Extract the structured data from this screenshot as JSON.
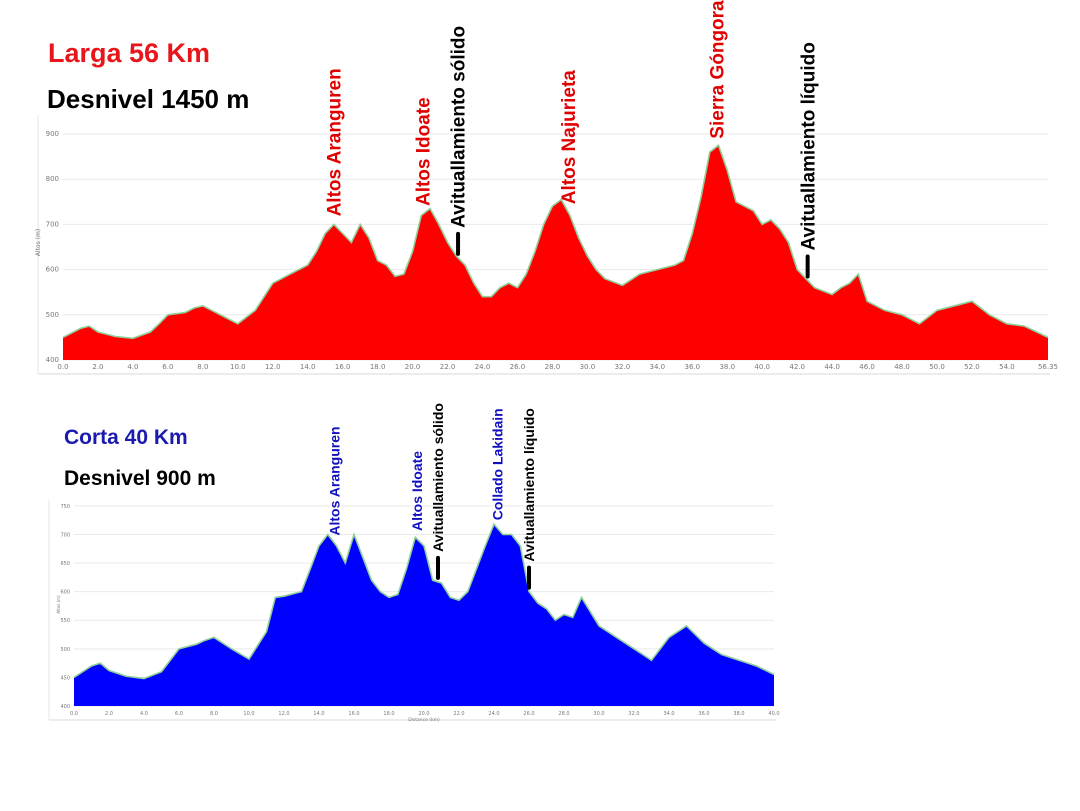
{
  "colors": {
    "long_fill": "#ff0000",
    "short_fill": "#0000ff",
    "profile_line": "#8fcf9a",
    "poi_long": "#e00000",
    "poi_short": "#1010c0",
    "supply": "#000000"
  },
  "long": {
    "title": "Larga 56 Km",
    "subtitle": "Desnivel 1450 m"
  },
  "short": {
    "title": "Corta 40 Km",
    "subtitle": "Desnivel 900 m"
  },
  "chart_data": [
    {
      "type": "area",
      "xlim": [
        0,
        56.35
      ],
      "ylim": [
        400,
        920
      ],
      "ylabel": "Altos (m)",
      "yticks": [
        400,
        500,
        600,
        700,
        800,
        900
      ],
      "xticks": [
        "0.0",
        "2.0",
        "4.0",
        "6.0",
        "8.0",
        "10.0",
        "12.0",
        "14.0",
        "16.0",
        "18.0",
        "20.0",
        "22.0",
        "24.0",
        "26.0",
        "28.0",
        "30.0",
        "32.0",
        "34.0",
        "36.0",
        "38.0",
        "40.0",
        "42.0",
        "44.0",
        "46.0",
        "48.0",
        "50.0",
        "52.0",
        "54.0",
        "56.35"
      ],
      "grid": true,
      "series": [
        {
          "x": [
            0,
            1,
            1.5,
            2,
            3,
            4,
            5,
            5.5,
            6,
            7,
            7.5,
            8,
            9,
            10,
            11,
            12,
            12.5,
            13,
            14,
            14.5,
            15,
            15.5,
            16,
            16.5,
            17,
            17.5,
            18,
            18.5,
            19,
            19.5,
            20,
            20.5,
            21,
            21.5,
            22,
            22.5,
            23,
            23.5,
            24,
            24.5,
            25,
            25.5,
            26,
            26.5,
            27,
            27.5,
            28,
            28.5,
            29,
            29.5,
            30,
            30.5,
            31,
            32,
            33,
            34,
            35,
            35.5,
            36,
            36.5,
            37,
            37.5,
            38,
            38.5,
            39,
            39.5,
            40,
            40.5,
            41,
            41.5,
            42,
            42.5,
            43,
            44,
            44.5,
            45,
            45.5,
            46,
            47,
            48,
            49,
            50,
            51,
            52,
            53,
            54,
            55,
            56.35
          ],
          "y": [
            450,
            470,
            475,
            462,
            452,
            448,
            462,
            480,
            500,
            505,
            515,
            520,
            500,
            480,
            510,
            570,
            580,
            590,
            610,
            640,
            680,
            700,
            680,
            660,
            700,
            670,
            620,
            610,
            585,
            590,
            640,
            720,
            735,
            700,
            660,
            630,
            610,
            570,
            540,
            540,
            560,
            570,
            560,
            590,
            640,
            700,
            740,
            755,
            720,
            670,
            630,
            600,
            580,
            565,
            590,
            600,
            610,
            620,
            680,
            760,
            860,
            875,
            820,
            750,
            740,
            730,
            700,
            710,
            690,
            660,
            600,
            580,
            560,
            545,
            560,
            570,
            590,
            530,
            510,
            500,
            480,
            510,
            520,
            530,
            500,
            480,
            475,
            450
          ]
        }
      ],
      "annotations": [
        {
          "label": "Altos Aranguren",
          "x": 15.5,
          "type": "peak"
        },
        {
          "label": "Altos Idoate",
          "x": 20.6,
          "type": "peak"
        },
        {
          "label": "Avituallamiento sólido",
          "x": 22.6,
          "type": "supply"
        },
        {
          "label": "Altos Najurieta",
          "x": 28.9,
          "type": "peak"
        },
        {
          "label": "Sierra Góngora",
          "x": 37.4,
          "type": "peak"
        },
        {
          "label": "Avituallamiento líquido",
          "x": 42.6,
          "type": "supply"
        }
      ]
    },
    {
      "type": "area",
      "xlim": [
        0,
        40.0
      ],
      "ylim": [
        400,
        755
      ],
      "ylabel": "Altos (m)",
      "xlabel": "Distance (km)",
      "yticks": [
        400,
        450,
        500,
        550,
        600,
        650,
        700,
        750
      ],
      "xticks": [
        "0.0",
        "2.0",
        "4.0",
        "6.0",
        "8.0",
        "10.0",
        "12.0",
        "14.0",
        "16.0",
        "18.0",
        "20.0",
        "22.0",
        "24.0",
        "26.0",
        "28.0",
        "30.0",
        "32.0",
        "34.0",
        "36.0",
        "38.0",
        "40.0"
      ],
      "grid": true,
      "series": [
        {
          "x": [
            0,
            1,
            1.5,
            2,
            3,
            4,
            5,
            5.5,
            6,
            7,
            7.5,
            8,
            9,
            10,
            11,
            11.5,
            12,
            13,
            13.5,
            14,
            14.5,
            15,
            15.5,
            16,
            16.5,
            17,
            17.5,
            18,
            18.5,
            19,
            19.5,
            20,
            20.5,
            21,
            21.5,
            22,
            22.5,
            23,
            23.5,
            24,
            24.5,
            25,
            25.5,
            26,
            26.5,
            27,
            27.5,
            28,
            28.5,
            29,
            30,
            31,
            32,
            33,
            34,
            35,
            36,
            37,
            38,
            39,
            40
          ],
          "y": [
            450,
            470,
            475,
            462,
            452,
            448,
            460,
            480,
            500,
            508,
            515,
            520,
            500,
            482,
            530,
            590,
            592,
            600,
            640,
            680,
            700,
            680,
            650,
            700,
            660,
            620,
            600,
            590,
            595,
            640,
            695,
            680,
            620,
            615,
            590,
            585,
            600,
            640,
            680,
            718,
            700,
            700,
            680,
            600,
            580,
            570,
            550,
            560,
            555,
            590,
            540,
            520,
            500,
            480,
            520,
            540,
            510,
            490,
            480,
            470,
            455
          ]
        }
      ],
      "annotations": [
        {
          "label": "Altos Aranguren",
          "x": 14.9,
          "type": "peak"
        },
        {
          "label": "Altos Idoate",
          "x": 19.6,
          "type": "peak"
        },
        {
          "label": "Avituallamiento sólido",
          "x": 20.8,
          "type": "supply"
        },
        {
          "label": "Collado Lakidain",
          "x": 24.2,
          "type": "peak"
        },
        {
          "label": "Avituallamiento líquido",
          "x": 26.0,
          "type": "supply"
        }
      ]
    }
  ]
}
